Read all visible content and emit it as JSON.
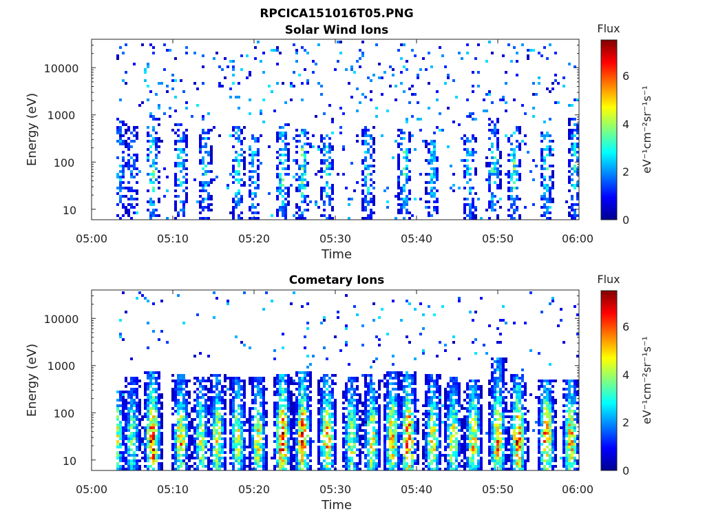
{
  "figure": {
    "title": "RPCICA151016T05.PNG"
  },
  "colors": {
    "colormap": [
      "#00008f",
      "#0000ff",
      "#0080ff",
      "#00ffff",
      "#80ff80",
      "#ffff00",
      "#ff8000",
      "#ff0000",
      "#800000"
    ],
    "axis": "#222222",
    "background": "#ffffff"
  },
  "chart_data": [
    {
      "type": "heatmap",
      "title": "Solar Wind Ions",
      "xlabel": "Time",
      "ylabel": "Energy (eV)",
      "x_ticks": [
        "05:00",
        "05:10",
        "05:20",
        "05:30",
        "05:40",
        "05:50",
        "06:00"
      ],
      "xlim": [
        "05:00",
        "06:00"
      ],
      "y_ticks": [
        "10",
        "100",
        "1000",
        "10000"
      ],
      "y_scale": "log",
      "ylim": [
        6,
        40000
      ],
      "colorbar": {
        "label": "Flux",
        "units": "eV⁻¹cm⁻²sr⁻¹s⁻¹",
        "ticks": [
          "0",
          "2",
          "4",
          "6"
        ],
        "range": [
          0,
          7.5
        ]
      },
      "bursts": [
        {
          "t": "05:03.5",
          "peak_flux": 2.5,
          "emax": 900
        },
        {
          "t": "05:05.0",
          "peak_flux": 2.0,
          "emax": 600
        },
        {
          "t": "05:07.5",
          "peak_flux": 3.5,
          "emax": 1000
        },
        {
          "t": "05:11.0",
          "peak_flux": 3.0,
          "emax": 700
        },
        {
          "t": "05:14.0",
          "peak_flux": 3.0,
          "emax": 500
        },
        {
          "t": "05:18.0",
          "peak_flux": 3.2,
          "emax": 600
        },
        {
          "t": "05:20.0",
          "peak_flux": 3.0,
          "emax": 400
        },
        {
          "t": "05:23.5",
          "peak_flux": 3.5,
          "emax": 700
        },
        {
          "t": "05:26.0",
          "peak_flux": 3.8,
          "emax": 500
        },
        {
          "t": "05:29.0",
          "peak_flux": 3.2,
          "emax": 400
        },
        {
          "t": "05:34.0",
          "peak_flux": 3.0,
          "emax": 600
        },
        {
          "t": "05:38.5",
          "peak_flux": 3.5,
          "emax": 500
        },
        {
          "t": "05:42.0",
          "peak_flux": 3.0,
          "emax": 300
        },
        {
          "t": "05:46.5",
          "peak_flux": 3.0,
          "emax": 400
        },
        {
          "t": "05:49.5",
          "peak_flux": 3.3,
          "emax": 1000
        },
        {
          "t": "05:52.0",
          "peak_flux": 3.5,
          "emax": 600
        },
        {
          "t": "05:56.0",
          "peak_flux": 3.2,
          "emax": 500
        },
        {
          "t": "05:59.5",
          "peak_flux": 3.0,
          "emax": 900
        }
      ]
    },
    {
      "type": "heatmap",
      "title": "Cometary Ions",
      "xlabel": "Time",
      "ylabel": "Energy (eV)",
      "x_ticks": [
        "05:00",
        "05:10",
        "05:20",
        "05:30",
        "05:40",
        "05:50",
        "06:00"
      ],
      "xlim": [
        "05:00",
        "06:00"
      ],
      "y_ticks": [
        "10",
        "100",
        "1000",
        "10000"
      ],
      "y_scale": "log",
      "ylim": [
        6,
        40000
      ],
      "colorbar": {
        "label": "Flux",
        "units": "eV⁻¹cm⁻²sr⁻¹s⁻¹",
        "ticks": [
          "0",
          "2",
          "4",
          "6"
        ],
        "range": [
          0,
          7.5
        ]
      },
      "bursts": [
        {
          "t": "05:03.0",
          "peak_flux": 5.0,
          "emax": 300
        },
        {
          "t": "05:05.0",
          "peak_flux": 4.0,
          "emax": 600
        },
        {
          "t": "05:07.5",
          "peak_flux": 6.8,
          "emax": 800
        },
        {
          "t": "05:11.0",
          "peak_flux": 5.5,
          "emax": 700
        },
        {
          "t": "05:13.5",
          "peak_flux": 4.5,
          "emax": 600
        },
        {
          "t": "05:15.5",
          "peak_flux": 5.0,
          "emax": 700
        },
        {
          "t": "05:18.0",
          "peak_flux": 4.8,
          "emax": 600
        },
        {
          "t": "05:20.5",
          "peak_flux": 5.0,
          "emax": 600
        },
        {
          "t": "05:23.5",
          "peak_flux": 6.8,
          "emax": 700
        },
        {
          "t": "05:26.0",
          "peak_flux": 6.5,
          "emax": 800
        },
        {
          "t": "05:29.0",
          "peak_flux": 6.0,
          "emax": 700
        },
        {
          "t": "05:32.0",
          "peak_flux": 4.8,
          "emax": 600
        },
        {
          "t": "05:34.5",
          "peak_flux": 5.0,
          "emax": 700
        },
        {
          "t": "05:37.0",
          "peak_flux": 5.5,
          "emax": 800
        },
        {
          "t": "05:39.0",
          "peak_flux": 6.8,
          "emax": 800
        },
        {
          "t": "05:42.0",
          "peak_flux": 5.2,
          "emax": 700
        },
        {
          "t": "05:44.5",
          "peak_flux": 4.8,
          "emax": 600
        },
        {
          "t": "05:47.0",
          "peak_flux": 5.5,
          "emax": 500
        },
        {
          "t": "05:50.0",
          "peak_flux": 6.0,
          "emax": 1500
        },
        {
          "t": "05:52.5",
          "peak_flux": 6.5,
          "emax": 700
        },
        {
          "t": "05:56.0",
          "peak_flux": 6.2,
          "emax": 500
        },
        {
          "t": "05:59.0",
          "peak_flux": 5.5,
          "emax": 500
        }
      ]
    }
  ]
}
